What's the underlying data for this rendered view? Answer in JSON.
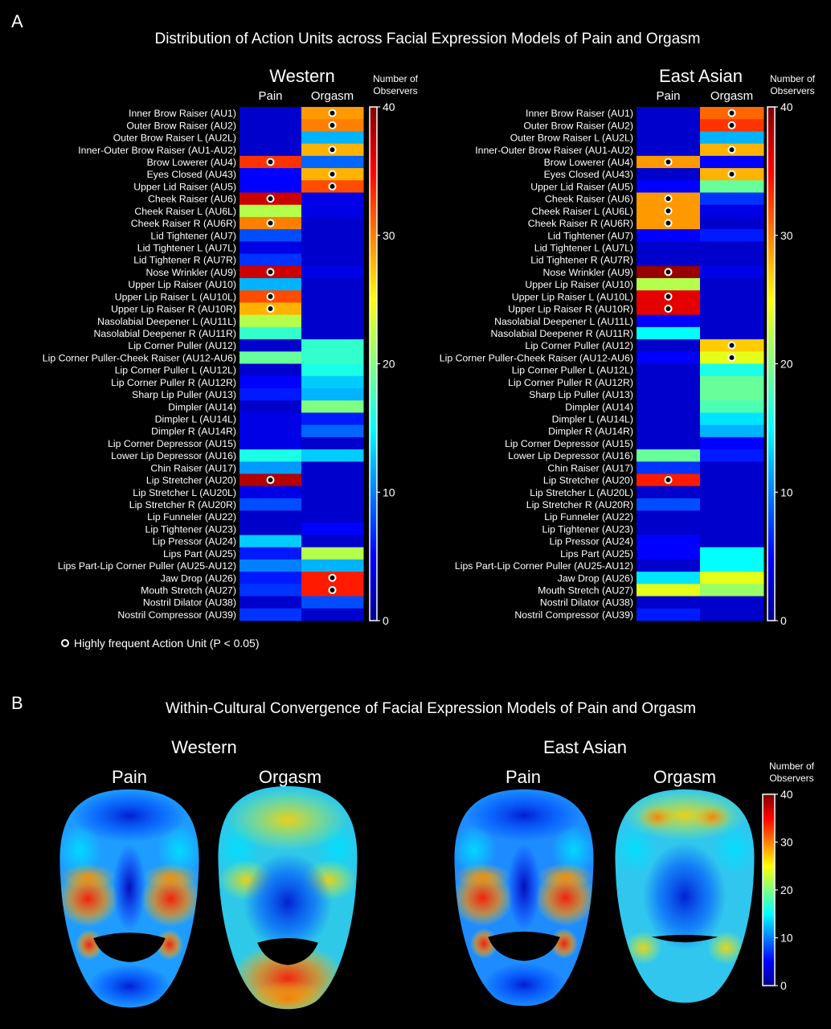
{
  "panel_a": {
    "letter": "A",
    "title": "Distribution of Action Units across Facial Expression Models of Pain and Orgasm",
    "legend_note": "Highly frequent Action Unit (P < 0.05)"
  },
  "panel_b": {
    "letter": "B",
    "title": "Within-Cultural Convergence of Facial Expression Models of Pain and Orgasm",
    "groups": [
      {
        "name": "Western",
        "faces": [
          "Pain",
          "Orgasm"
        ]
      },
      {
        "name": "East Asian",
        "faces": [
          "Pain",
          "Orgasm"
        ]
      }
    ]
  },
  "colorbar": {
    "label_line1": "Number of",
    "label_line2": "Observers",
    "ticks": [
      "40",
      "30",
      "20",
      "10",
      "0"
    ],
    "min": 0,
    "max": 40
  },
  "colors": {
    "background": "#000000",
    "colormap": "jet"
  },
  "chart_data": [
    {
      "type": "heatmap",
      "title": "Western",
      "columns": [
        "Pain",
        "Orgasm"
      ],
      "rows": [
        "Inner Brow Raiser (AU1)",
        "Outer Brow Raiser (AU2)",
        "Outer Brow Raiser L (AU2L)",
        "Inner-Outer Brow Raiser (AU1-AU2)",
        "Brow Lowerer (AU4)",
        "Eyes Closed (AU43)",
        "Upper Lid Raiser (AU5)",
        "Cheek Raiser (AU6)",
        "Cheek Raiser L (AU6L)",
        "Cheek Raiser R (AU6R)",
        "Lid Tightener (AU7)",
        "Lid Tightener L (AU7L)",
        "Lid Tightener R (AU7R)",
        "Nose Wrinkler (AU9)",
        "Upper Lip Raiser (AU10)",
        "Upper Lip Raiser L (AU10L)",
        "Upper Lip Raiser R (AU10R)",
        "Nasolabial Deepener L (AU11L)",
        "Nasolabial Deepener R (AU11R)",
        "Lip Corner Puller (AU12)",
        "Lip Corner Puller-Cheek Raiser (AU12-AU6)",
        "Lip Corner Puller L (AU12L)",
        "Lip Corner Puller R (AU12R)",
        "Sharp Lip Puller (AU13)",
        "Dimpler (AU14)",
        "Dimpler L (AU14L)",
        "Dimpler R (AU14R)",
        "Lip Corner Depressor (AU15)",
        "Lower Lip Depressor (AU16)",
        "Chin Raiser (AU17)",
        "Lip Stretcher (AU20)",
        "Lip Stretcher L (AU20L)",
        "Lip Stretcher R (AU20R)",
        "Lip Funneler (AU22)",
        "Lip Tightener (AU23)",
        "Lip Pressor (AU24)",
        "Lips Part (AU25)",
        "Lips Part-Lip Corner Puller (AU25-AU12)",
        "Jaw Drop (AU26)",
        "Mouth Stretch (AU27)",
        "Nostril Dilator (AU38)",
        "Nostril Compressor (AU39)"
      ],
      "values": [
        [
          3,
          29
        ],
        [
          3,
          30
        ],
        [
          3,
          12
        ],
        [
          3,
          28
        ],
        [
          33,
          9
        ],
        [
          5,
          28
        ],
        [
          5,
          32
        ],
        [
          37,
          4
        ],
        [
          22,
          4
        ],
        [
          30,
          3
        ],
        [
          8,
          3
        ],
        [
          4,
          3
        ],
        [
          7,
          3
        ],
        [
          37,
          4
        ],
        [
          12,
          3
        ],
        [
          32,
          3
        ],
        [
          28,
          3
        ],
        [
          22,
          3
        ],
        [
          17,
          3
        ],
        [
          3,
          17
        ],
        [
          19,
          17
        ],
        [
          3,
          16
        ],
        [
          5,
          13
        ],
        [
          6,
          12
        ],
        [
          3,
          20
        ],
        [
          4,
          6
        ],
        [
          4,
          9
        ],
        [
          4,
          3
        ],
        [
          16,
          13
        ],
        [
          11,
          3
        ],
        [
          38,
          3
        ],
        [
          4,
          3
        ],
        [
          8,
          3
        ],
        [
          3,
          3
        ],
        [
          3,
          5
        ],
        [
          13,
          3
        ],
        [
          6,
          22
        ],
        [
          10,
          12
        ],
        [
          6,
          34
        ],
        [
          7,
          34
        ],
        [
          3,
          8
        ],
        [
          7,
          3
        ]
      ],
      "significant": [
        [
          0,
          1
        ],
        [
          1,
          1
        ],
        [
          3,
          1
        ],
        [
          4,
          0
        ],
        [
          5,
          1
        ],
        [
          6,
          1
        ],
        [
          7,
          0
        ],
        [
          9,
          0
        ],
        [
          13,
          0
        ],
        [
          15,
          0
        ],
        [
          16,
          0
        ],
        [
          30,
          0
        ],
        [
          38,
          1
        ],
        [
          39,
          1
        ]
      ],
      "value_range": [
        0,
        40
      ]
    },
    {
      "type": "heatmap",
      "title": "East Asian",
      "columns": [
        "Pain",
        "Orgasm"
      ],
      "rows": [
        "Inner Brow Raiser (AU1)",
        "Outer Brow Raiser (AU2)",
        "Outer Brow Raiser L (AU2L)",
        "Inner-Outer Brow Raiser (AU1-AU2)",
        "Brow Lowerer (AU4)",
        "Eyes Closed (AU43)",
        "Upper Lid Raiser (AU5)",
        "Cheek Raiser (AU6)",
        "Cheek Raiser L (AU6L)",
        "Cheek Raiser R (AU6R)",
        "Lid Tightener (AU7)",
        "Lid Tightener L (AU7L)",
        "Lid Tightener R (AU7R)",
        "Nose Wrinkler (AU9)",
        "Upper Lip Raiser (AU10)",
        "Upper Lip Raiser L (AU10L)",
        "Upper Lip Raiser R (AU10R)",
        "Nasolabial Deepener L (AU11L)",
        "Nasolabial Deepener R (AU11R)",
        "Lip Corner Puller (AU12)",
        "Lip Corner Puller-Cheek Raiser (AU12-AU6)",
        "Lip Corner Puller L (AU12L)",
        "Lip Corner Puller R (AU12R)",
        "Sharp Lip Puller (AU13)",
        "Dimpler (AU14)",
        "Dimpler L (AU14L)",
        "Dimpler R (AU14R)",
        "Lip Corner Depressor (AU15)",
        "Lower Lip Depressor (AU16)",
        "Chin Raiser (AU17)",
        "Lip Stretcher (AU20)",
        "Lip Stretcher L (AU20L)",
        "Lip Stretcher R (AU20R)",
        "Lip Funneler (AU22)",
        "Lip Tightener (AU23)",
        "Lip Pressor (AU24)",
        "Lips Part (AU25)",
        "Lips Part-Lip Corner Puller (AU25-AU12)",
        "Jaw Drop (AU26)",
        "Mouth Stretch (AU27)",
        "Nostril Dilator (AU38)",
        "Nostril Compressor (AU39)"
      ],
      "values": [
        [
          3,
          31
        ],
        [
          3,
          33
        ],
        [
          3,
          12
        ],
        [
          3,
          28
        ],
        [
          29,
          5
        ],
        [
          3,
          28
        ],
        [
          5,
          19
        ],
        [
          29,
          7
        ],
        [
          29,
          4
        ],
        [
          29,
          3
        ],
        [
          5,
          6
        ],
        [
          3,
          3
        ],
        [
          3,
          3
        ],
        [
          39,
          4
        ],
        [
          22,
          3
        ],
        [
          36,
          3
        ],
        [
          36,
          3
        ],
        [
          5,
          3
        ],
        [
          15,
          3
        ],
        [
          3,
          27
        ],
        [
          5,
          24
        ],
        [
          3,
          16
        ],
        [
          3,
          19
        ],
        [
          3,
          19
        ],
        [
          3,
          18
        ],
        [
          3,
          14
        ],
        [
          3,
          12
        ],
        [
          3,
          5
        ],
        [
          19,
          6
        ],
        [
          7,
          3
        ],
        [
          34,
          3
        ],
        [
          3,
          3
        ],
        [
          8,
          3
        ],
        [
          3,
          3
        ],
        [
          3,
          3
        ],
        [
          5,
          3
        ],
        [
          5,
          15
        ],
        [
          3,
          15
        ],
        [
          14,
          24
        ],
        [
          24,
          21
        ],
        [
          3,
          3
        ],
        [
          6,
          3
        ]
      ],
      "significant": [
        [
          0,
          1
        ],
        [
          1,
          1
        ],
        [
          3,
          1
        ],
        [
          4,
          0
        ],
        [
          5,
          1
        ],
        [
          7,
          0
        ],
        [
          8,
          0
        ],
        [
          9,
          0
        ],
        [
          13,
          0
        ],
        [
          15,
          0
        ],
        [
          16,
          0
        ],
        [
          19,
          1
        ],
        [
          20,
          1
        ],
        [
          30,
          0
        ]
      ],
      "value_range": [
        0,
        40
      ]
    }
  ]
}
